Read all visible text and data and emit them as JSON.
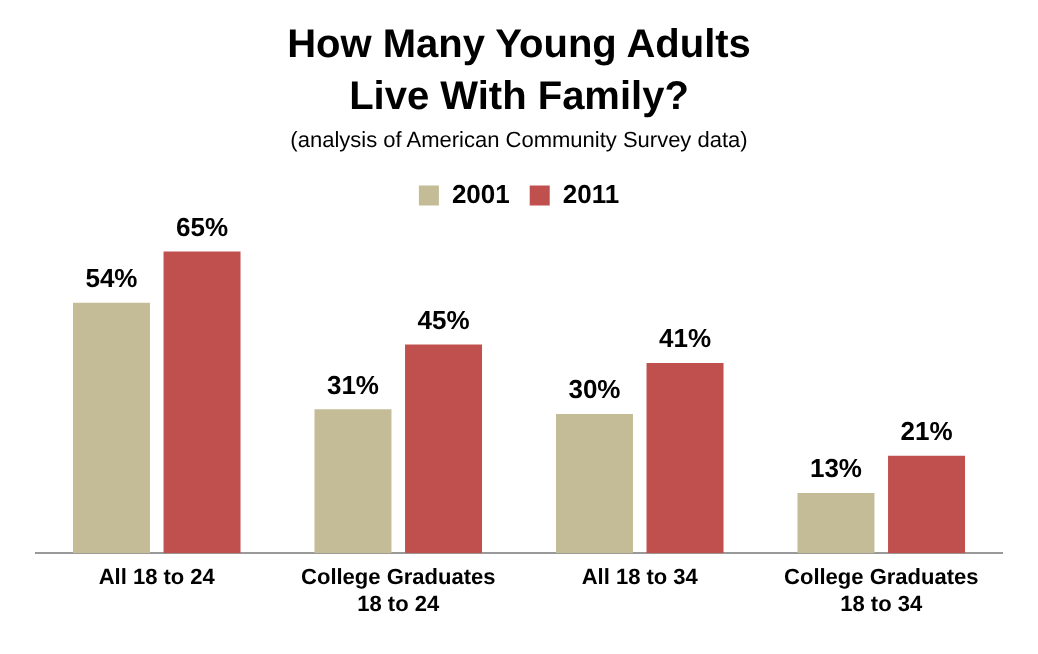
{
  "chart_data": {
    "type": "bar",
    "title": "How Many Young Adults\nLive With Family?",
    "subtitle": "(analysis of American Community Survey data)",
    "categories": [
      "All 18 to 24",
      "College Graduates\n18 to 24",
      "All 18 to 34",
      "College Graduates\n18 to 34"
    ],
    "series": [
      {
        "name": "2001",
        "color": "#c4bc96",
        "values": [
          54,
          31,
          30,
          13
        ],
        "value_labels": [
          "54%",
          "31%",
          "30%",
          "13%"
        ]
      },
      {
        "name": "2011",
        "color": "#c0504d",
        "values": [
          65,
          45,
          41,
          21
        ],
        "value_labels": [
          "65%",
          "45%",
          "41%",
          "21%"
        ]
      }
    ],
    "legend": "top",
    "grid": false,
    "tick_labels": "x"
  }
}
